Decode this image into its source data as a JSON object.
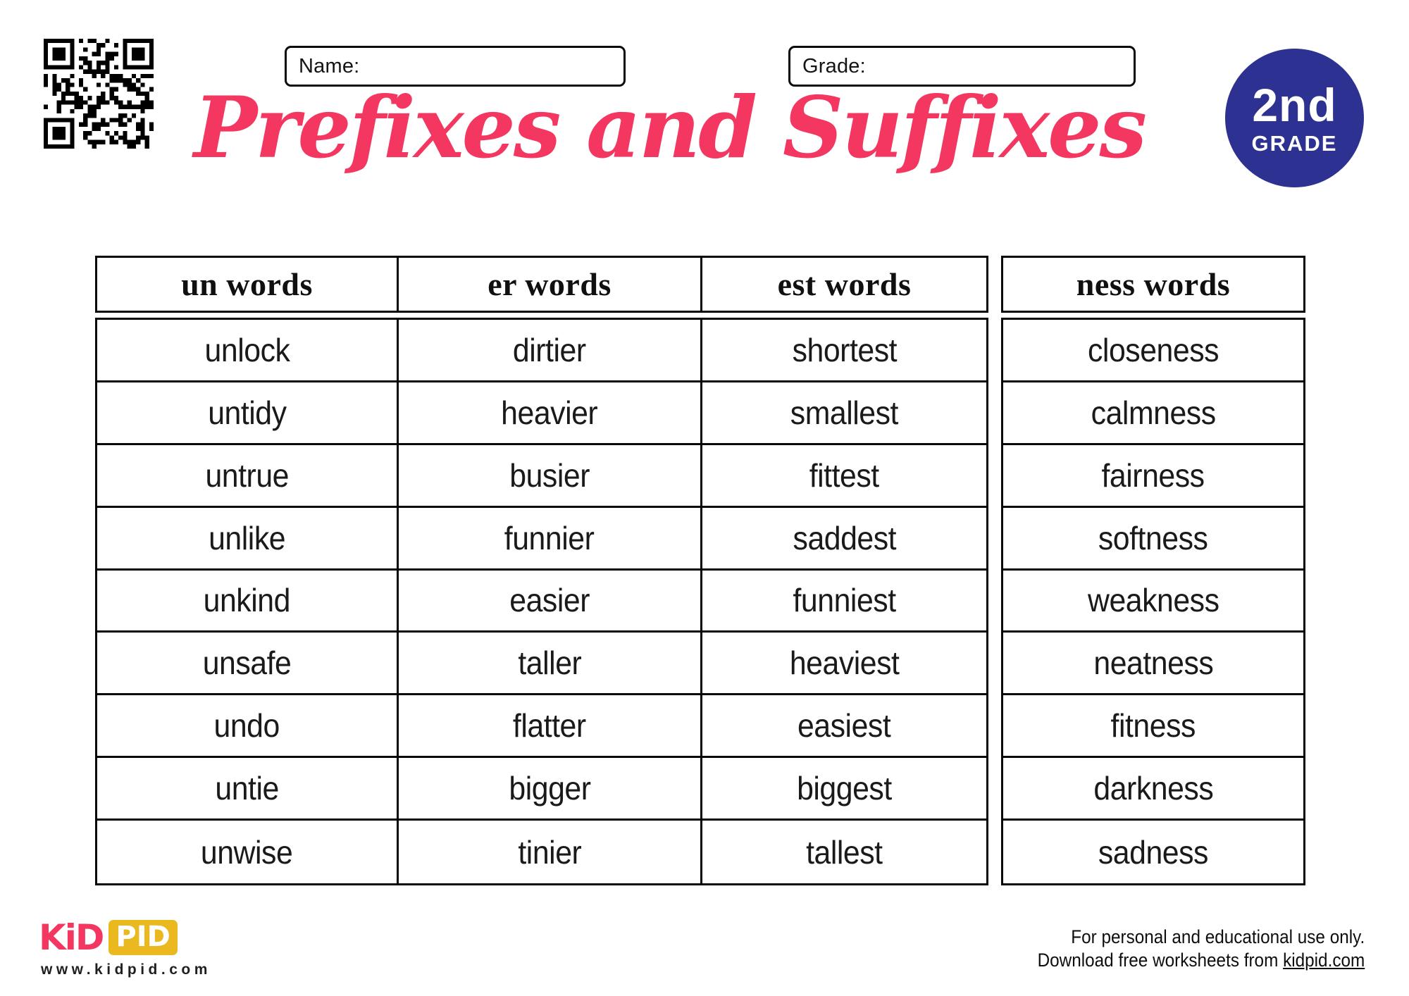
{
  "header": {
    "name_label": "Name:",
    "grade_label": "Grade:",
    "title": "Prefixes and Suffixes",
    "badge": {
      "line1": "2nd",
      "line2": "GRADE"
    }
  },
  "table": {
    "columns": [
      "un words",
      "er words",
      "est words",
      "ness words"
    ],
    "rows": [
      [
        "unlock",
        "dirtier",
        "shortest",
        "closeness"
      ],
      [
        "untidy",
        "heavier",
        "smallest",
        "calmness"
      ],
      [
        "untrue",
        "busier",
        "fittest",
        "fairness"
      ],
      [
        "unlike",
        "funnier",
        "saddest",
        "softness"
      ],
      [
        "unkind",
        "easier",
        "funniest",
        "weakness"
      ],
      [
        "unsafe",
        "taller",
        "heaviest",
        "neatness"
      ],
      [
        "undo",
        "flatter",
        "easiest",
        "fitness"
      ],
      [
        "untie",
        "bigger",
        "biggest",
        "darkness"
      ],
      [
        "unwise",
        "tinier",
        "tallest",
        "sadness"
      ]
    ]
  },
  "footer": {
    "logo_kid": "KiD",
    "logo_pid": "PID",
    "website": "www.kidpid.com",
    "note_line1": "For personal and educational use only.",
    "note_line2_prefix": "Download free worksheets from ",
    "note_link": "kidpid.com"
  },
  "colors": {
    "pink": "#f43760",
    "navy": "#2d3192",
    "yellow": "#eab81f"
  }
}
